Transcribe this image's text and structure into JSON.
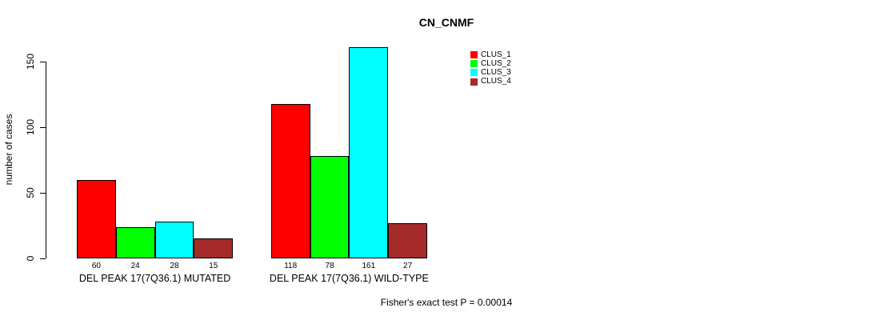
{
  "chart_data": {
    "type": "bar",
    "title": "CN_CNMF",
    "ylabel": "number of cases",
    "xlabel": "",
    "ylim": [
      0,
      165
    ],
    "yticks": [
      0,
      50,
      100,
      150
    ],
    "grid": false,
    "legend_position": "top-right",
    "bar_value_labels": true,
    "categories": [
      "DEL PEAK 17(7Q36.1) MUTATED",
      "DEL PEAK 17(7Q36.1) WILD-TYPE"
    ],
    "series": [
      {
        "name": "CLUS_1",
        "color": "#FF0000",
        "values": [
          60,
          118
        ]
      },
      {
        "name": "CLUS_2",
        "color": "#00FF00",
        "values": [
          24,
          78
        ]
      },
      {
        "name": "CLUS_3",
        "color": "#00FFFF",
        "values": [
          28,
          161
        ]
      },
      {
        "name": "CLUS_4",
        "color": "#A52A2A",
        "values": [
          15,
          27
        ]
      }
    ],
    "annotation": "Fisher's exact test P = 0.00014"
  }
}
